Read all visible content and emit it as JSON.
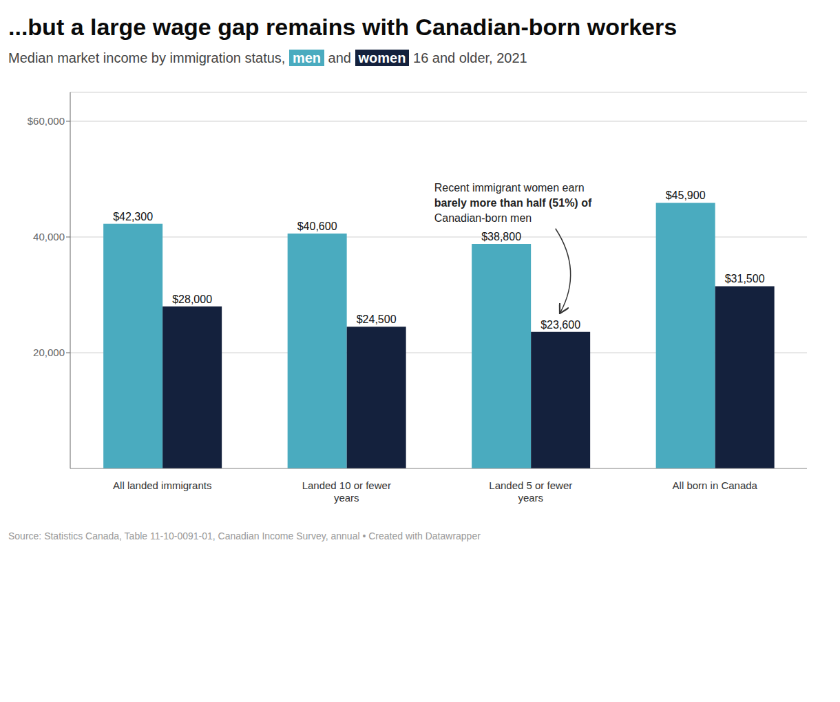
{
  "chart_data": {
    "type": "bar",
    "title": "...but a large wage gap remains with Canadian-born workers",
    "subtitle": "Median market income by immigration status, men and women 16 and older, 2021",
    "categories": [
      "All landed immigrants",
      "Landed 10 or fewer\nyears",
      "Landed 5 or fewer\nyears",
      "All born in Canada"
    ],
    "series": [
      {
        "name": "men",
        "color": "#4AABBF",
        "values": [
          42300,
          40600,
          38800,
          45900
        ],
        "value_labels": [
          "$42,300",
          "$40,600",
          "$38,800",
          "$45,900"
        ]
      },
      {
        "name": "women",
        "color": "#14213D",
        "values": [
          28000,
          24500,
          23600,
          31500
        ],
        "value_labels": [
          "$28,000",
          "$24,500",
          "$23,600",
          "$31,500"
        ]
      }
    ],
    "ylim": [
      0,
      65000
    ],
    "yticks": [
      {
        "value": 20000,
        "label": "20,000"
      },
      {
        "value": 40000,
        "label": "40,000"
      },
      {
        "value": 60000,
        "label": "$60,000"
      }
    ],
    "grid": true,
    "data_labels": true,
    "annotation": [
      "Recent immigrant women earn",
      "barely more than half (51%) of",
      "Canadian-born men"
    ],
    "source": "Source: Statistics Canada, Table 11-10-0091-01, Canadian Income Survey, annual • Created with Datawrapper"
  }
}
